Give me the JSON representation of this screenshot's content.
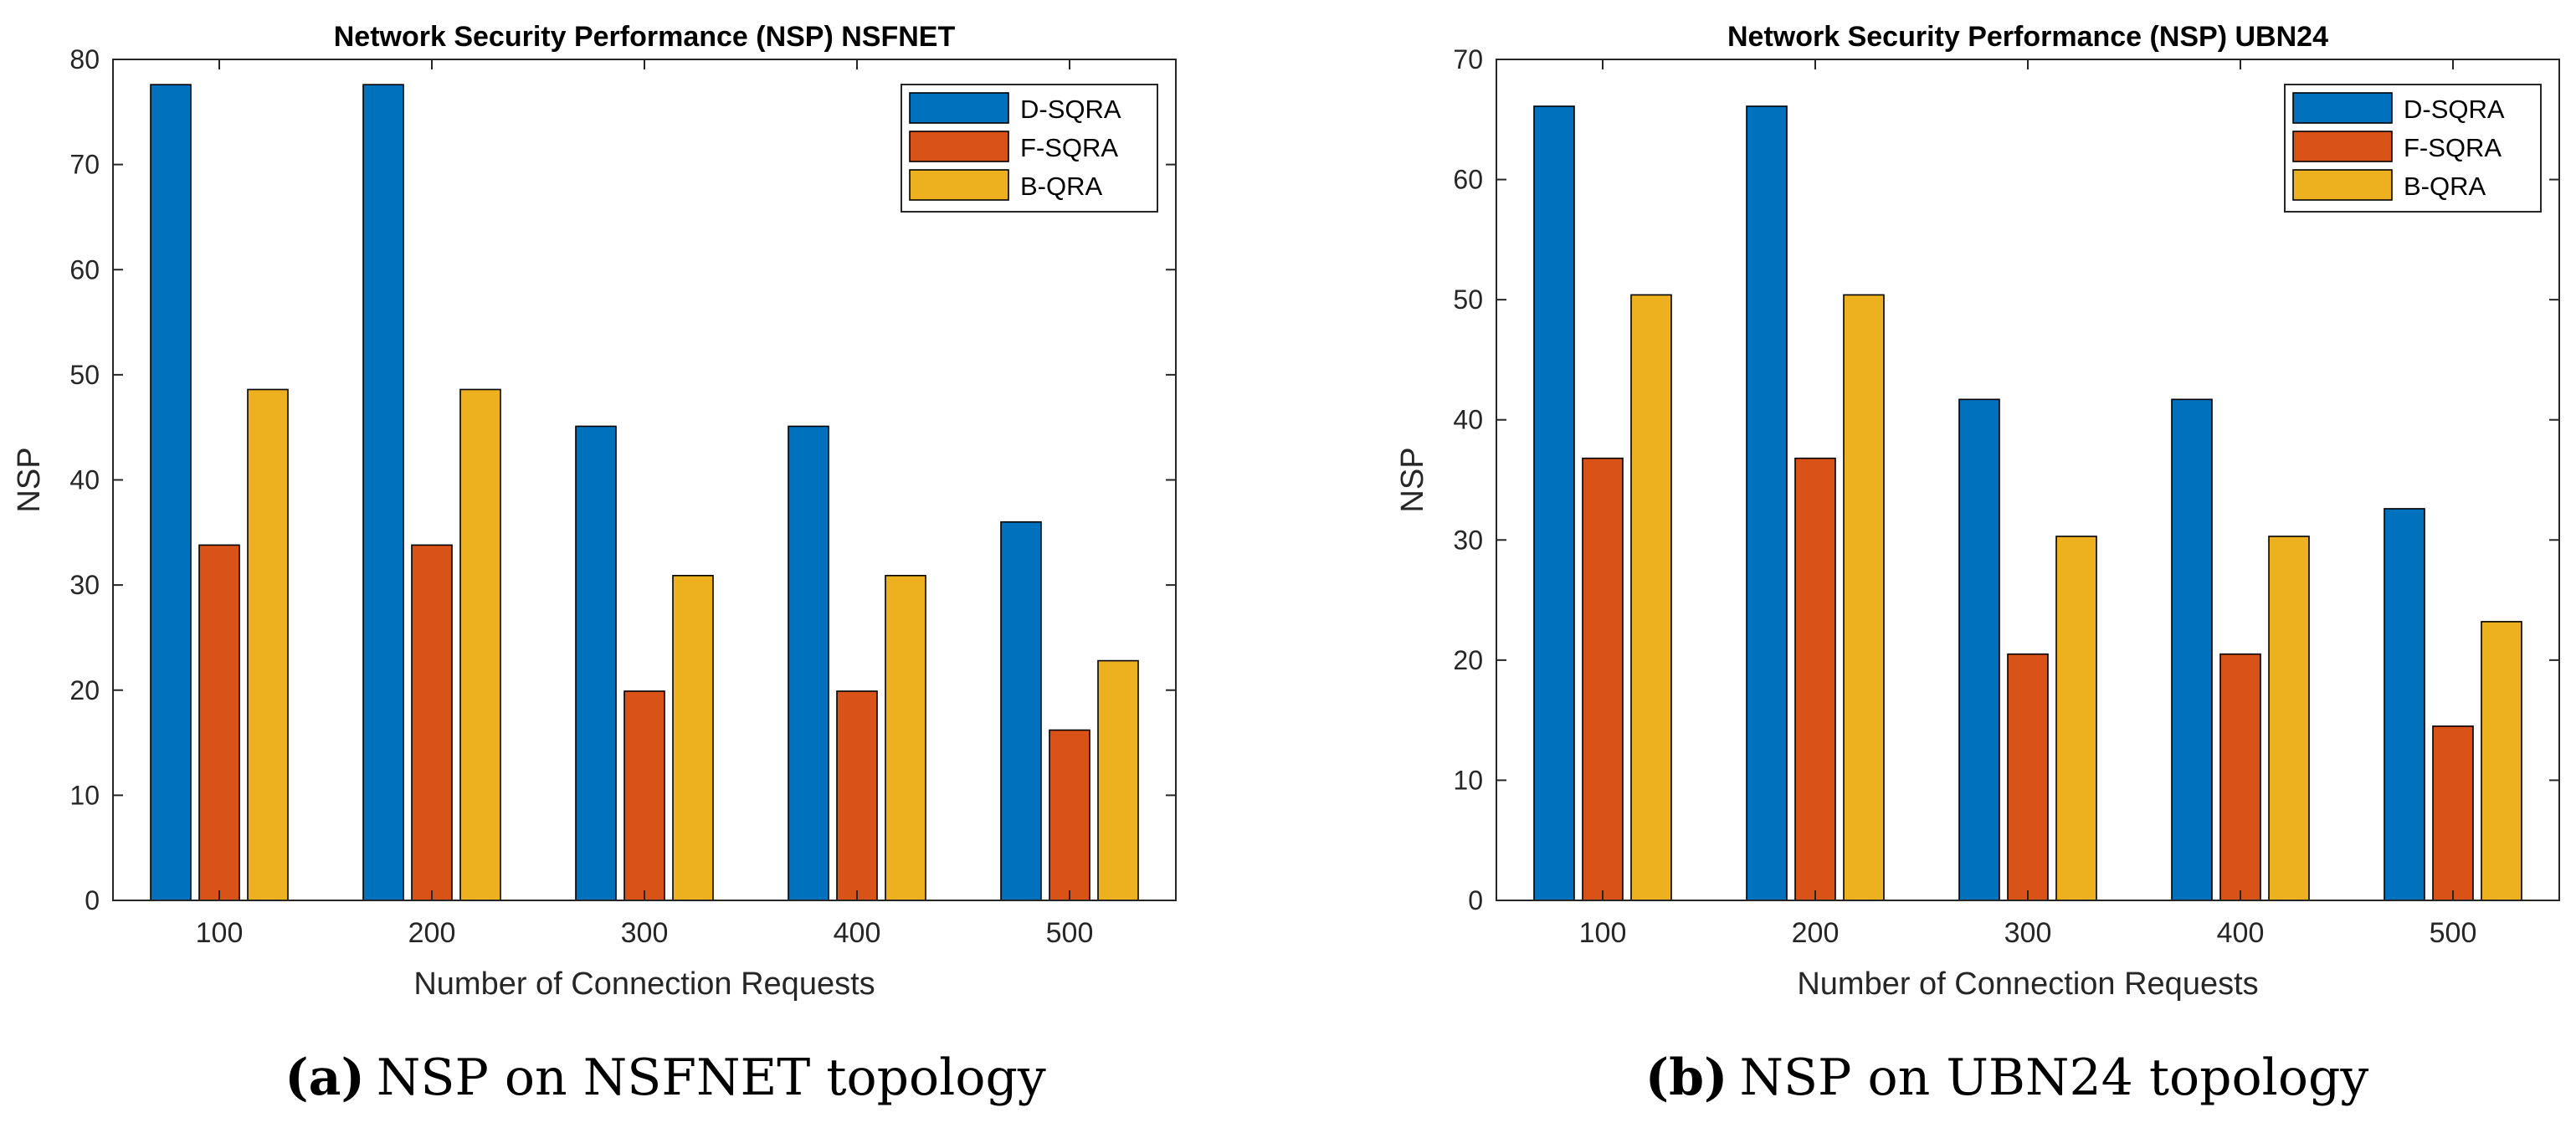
{
  "colors": {
    "D-SQRA": "#0072BD",
    "F-SQRA": "#D95319",
    "B-QRA": "#EDB120",
    "axis": "#262626",
    "background": "#ffffff"
  },
  "chart_data": [
    {
      "type": "bar",
      "title": "Network Security Performance (NSP) NSFNET",
      "xlabel": "Number of Connection Requests",
      "ylabel": "NSP",
      "ylim": [
        0,
        80
      ],
      "yticks": [
        0,
        10,
        20,
        30,
        40,
        50,
        60,
        70,
        80
      ],
      "categories": [
        "100",
        "200",
        "300",
        "400",
        "500"
      ],
      "legend_position": "top-right",
      "grid": false,
      "series": [
        {
          "name": "D-SQRA",
          "values": [
            77.6,
            77.6,
            45.1,
            45.1,
            36.0
          ]
        },
        {
          "name": "F-SQRA",
          "values": [
            33.8,
            33.8,
            19.9,
            19.9,
            16.2
          ]
        },
        {
          "name": "B-QRA",
          "values": [
            48.6,
            48.6,
            30.9,
            30.9,
            22.8
          ]
        }
      ],
      "caption": {
        "label": "(a)",
        "text": "NSP on NSFNET topology"
      }
    },
    {
      "type": "bar",
      "title": "Network Security Performance (NSP) UBN24",
      "xlabel": "Number of Connection Requests",
      "ylabel": "NSP",
      "ylim": [
        0,
        70
      ],
      "yticks": [
        0,
        10,
        20,
        30,
        40,
        50,
        60,
        70
      ],
      "categories": [
        "100",
        "200",
        "300",
        "400",
        "500"
      ],
      "legend_position": "top-right",
      "grid": false,
      "series": [
        {
          "name": "D-SQRA",
          "values": [
            66.1,
            66.1,
            41.7,
            41.7,
            32.6
          ]
        },
        {
          "name": "F-SQRA",
          "values": [
            36.8,
            36.8,
            20.5,
            20.5,
            14.5
          ]
        },
        {
          "name": "B-QRA",
          "values": [
            50.4,
            50.4,
            30.3,
            30.3,
            23.2
          ]
        }
      ],
      "caption": {
        "label": "(b)",
        "text": "NSP on UBN24 topology"
      }
    }
  ]
}
